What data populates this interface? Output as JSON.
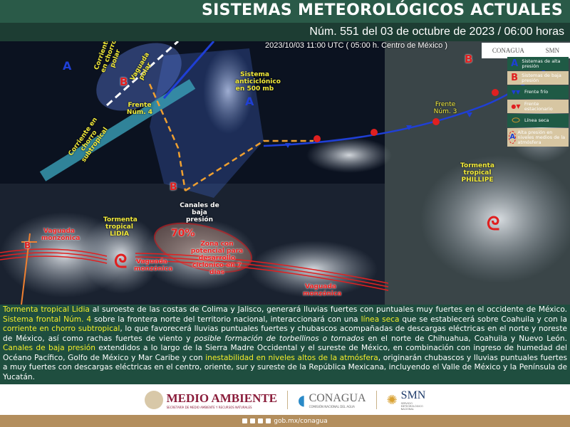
{
  "header": {
    "title": "SISTEMAS METEOROLÓGICOS ACTUALES",
    "subtitle": "Núm. 551 del 03 de octubre de 2023 / 06:00 horas"
  },
  "map": {
    "timestamp": "2023/10/03 11:00 UTC ( 05:00 h. Centro de México )",
    "logos": {
      "conagua": "CONAGUA",
      "smn": "SMN"
    },
    "labels": {
      "chorro_polar": "Corriente en chorro polar",
      "vaguada_polar": "Vaguada polar",
      "frente4": "Frente Núm. 4",
      "anticiclonico": "Sistema anticiclónico en 500 mb",
      "chorro_subtropical": "Corriente en chorro subtropical",
      "frente3": "Frente Núm. 3",
      "phillipe": "Tormenta tropical PHILLIPE",
      "canales": "Canales de baja presión",
      "lidia": "Tormenta tropical LIDIA",
      "vaguada1": "Vaguada monzónica",
      "vaguada2": "Vaguada monzónica",
      "vaguada3": "Vaguada monzónica",
      "pct": "70%",
      "zona": "Zona con potencial para desarrollo ciclónico en 7 días",
      "A": "A",
      "B": "B"
    },
    "legend": [
      {
        "icon": "A",
        "label": "Sistemas de alta presión",
        "color": "#1f3fd6"
      },
      {
        "icon": "B",
        "label": "Sistemas de baja presión",
        "color": "#e02020"
      },
      {
        "icon": "▼▼",
        "label": "Frente frío",
        "color": "#1f3fd6"
      },
      {
        "icon": "●▼",
        "label": "Frente estacionario",
        "color": "#e02020"
      },
      {
        "icon": "⬭",
        "label": "Línea seca",
        "color": "#c09030"
      },
      {
        "icon": "A",
        "label": "Alta presión en niveles medios de la atmósfera",
        "color": "#1f3fd6"
      }
    ]
  },
  "description": {
    "s1": "Tormenta tropical Lidia",
    "t1": " al suroeste de las costas de Colima y Jalisco, generará lluvias fuertes con puntuales muy fuertes en el occidente de México. ",
    "s2": "Sistema frontal Núm. 4",
    "t2": " sobre la frontera norte del territorio nacional, interaccionará con una ",
    "s3": "línea seca",
    "t3": " que se establecerá sobre Coahuila y con la ",
    "s4": "corriente en chorro subtropical",
    "t4": ", lo que favorecerá lluvias puntuales fuertes y chubascos acompañadas de descargas eléctricas en el norte y noreste de México, así como rachas fuertes de viento y ",
    "i1": "posible formación de torbellinos o tornados",
    "t5": " en el norte de Chihuahua, Coahuila y Nuevo León. ",
    "s5": "Canales de baja presión",
    "t6": " extendidos a lo largo de la Sierra Madre Occidental y el sureste de México, en combinación con ",
    "b1": "ingreso de humedad del Océano Pacífico, Golfo de México y Mar Caribe",
    "t7": " y con ",
    "s6": "inestabilidad en niveles altos de la atmósfera",
    "t8": ", originarán chubascos y lluvias puntuales fuertes a muy fuertes con descargas eléctricas en el centro, oriente, sur y sureste de la República Mexicana, incluyendo el Valle de México y la Península de Yucatán."
  },
  "footer": {
    "medio": "MEDIO AMBIENTE",
    "medio_sub": "SECRETARÍA DE MEDIO AMBIENTE Y RECURSOS NATURALES",
    "conagua": "CONAGUA",
    "conagua_sub": "COMISIÓN NACIONAL DEL AGUA",
    "smn": "SMN",
    "smn_sub": "SERVICIO METEOROLÓGICO NACIONAL",
    "url": "gob.mx/conagua"
  }
}
